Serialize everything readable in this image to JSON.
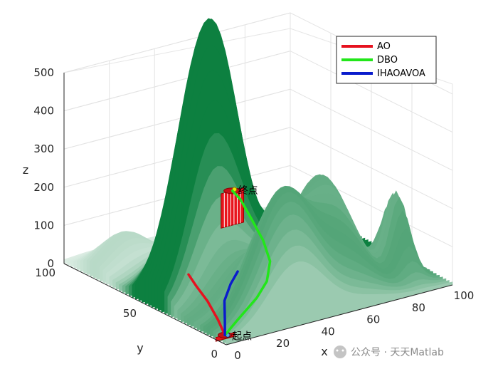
{
  "chart_data": {
    "type": "surface",
    "xlabel": "x",
    "ylabel": "y",
    "zlabel": "z",
    "xlim": [
      0,
      100
    ],
    "ylim": [
      0,
      100
    ],
    "zlim": [
      0,
      500
    ],
    "x_ticks": [
      "0",
      "20",
      "40",
      "60",
      "80",
      "100"
    ],
    "y_ticks": [
      "0",
      "50",
      "100"
    ],
    "z_ticks": [
      "0",
      "100",
      "200",
      "300",
      "400",
      "500"
    ],
    "grid": true,
    "legend_position": "top-right",
    "start_label": "起点",
    "goal_label": "终点",
    "colormap": [
      "#ffffff",
      "#0d8040"
    ],
    "series": [
      {
        "name": "AO",
        "color": "#e6121f",
        "points": [
          [
            3,
            5,
            10
          ],
          [
            5,
            12,
            32
          ],
          [
            6,
            20,
            63
          ],
          [
            6,
            27,
            88
          ],
          [
            7,
            33,
            103
          ]
        ]
      },
      {
        "name": "DBO",
        "color": "#22e61a",
        "points": [
          [
            3,
            5,
            10
          ],
          [
            12,
            10,
            24
          ],
          [
            25,
            16,
            50
          ],
          [
            33,
            21,
            70
          ],
          [
            38,
            26,
            104
          ],
          [
            40,
            33,
            140
          ],
          [
            40,
            40,
            180
          ],
          [
            40,
            47,
            218
          ],
          [
            40,
            52,
            230
          ]
        ]
      },
      {
        "name": "IHAOAVOA",
        "color": "#0a1ccc",
        "points": [
          [
            3,
            5,
            10
          ],
          [
            8,
            12,
            26
          ],
          [
            15,
            22,
            45
          ],
          [
            22,
            28,
            65
          ],
          [
            28,
            32,
            80
          ]
        ]
      }
    ]
  },
  "watermark": "公众号 · 天天Matlab"
}
